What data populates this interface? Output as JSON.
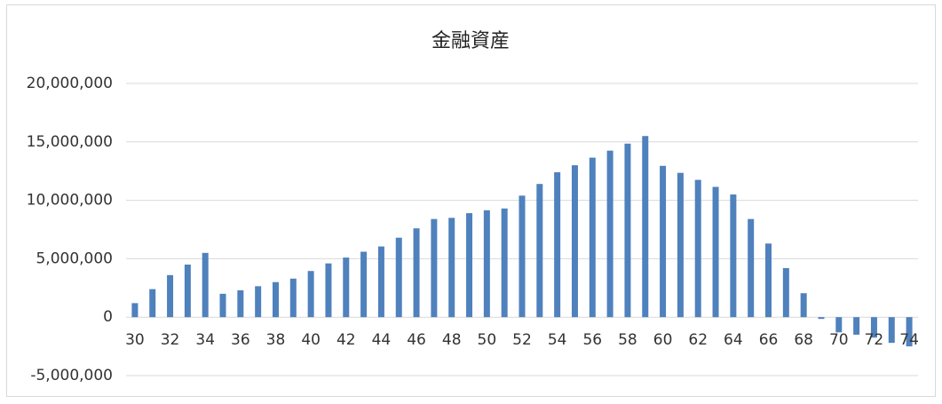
{
  "chart_data": {
    "type": "bar",
    "title": "金融資産",
    "categories": [
      "30",
      null,
      "32",
      null,
      "34",
      null,
      "36",
      null,
      "38",
      null,
      "40",
      null,
      "42",
      null,
      "44",
      null,
      "46",
      null,
      "48",
      null,
      "50",
      null,
      "52",
      null,
      "54",
      null,
      "56",
      null,
      "58",
      null,
      "60",
      null,
      "62",
      null,
      "64",
      null,
      "66",
      null,
      "68",
      null,
      "70",
      null,
      "72",
      null,
      "74"
    ],
    "values": [
      1200000,
      2400000,
      3600000,
      4500000,
      5500000,
      2000000,
      2300000,
      2650000,
      3000000,
      3300000,
      3950000,
      4600000,
      5100000,
      5600000,
      6050000,
      6800000,
      7600000,
      8400000,
      8500000,
      8900000,
      9150000,
      9300000,
      10400000,
      11400000,
      12400000,
      13000000,
      13650000,
      14250000,
      14850000,
      15500000,
      12950000,
      12350000,
      11750000,
      11150000,
      10500000,
      8400000,
      6300000,
      4200000,
      2050000,
      -150000,
      -1300000,
      -1500000,
      -1750000,
      -2200000,
      -2500000
    ],
    "color": "#4f81bd",
    "ylim": [
      -5000000,
      20000000
    ],
    "yticks": [
      {
        "value": -5000000,
        "label": "-5,000,000"
      },
      {
        "value": 0,
        "label": "0"
      },
      {
        "value": 5000000,
        "label": "5,000,000"
      },
      {
        "value": 10000000,
        "label": "10,000,000"
      },
      {
        "value": 15000000,
        "label": "15,000,000"
      },
      {
        "value": 20000000,
        "label": "20,000,000"
      }
    ],
    "negative_tick_color": "#ff0000",
    "grid": true
  }
}
